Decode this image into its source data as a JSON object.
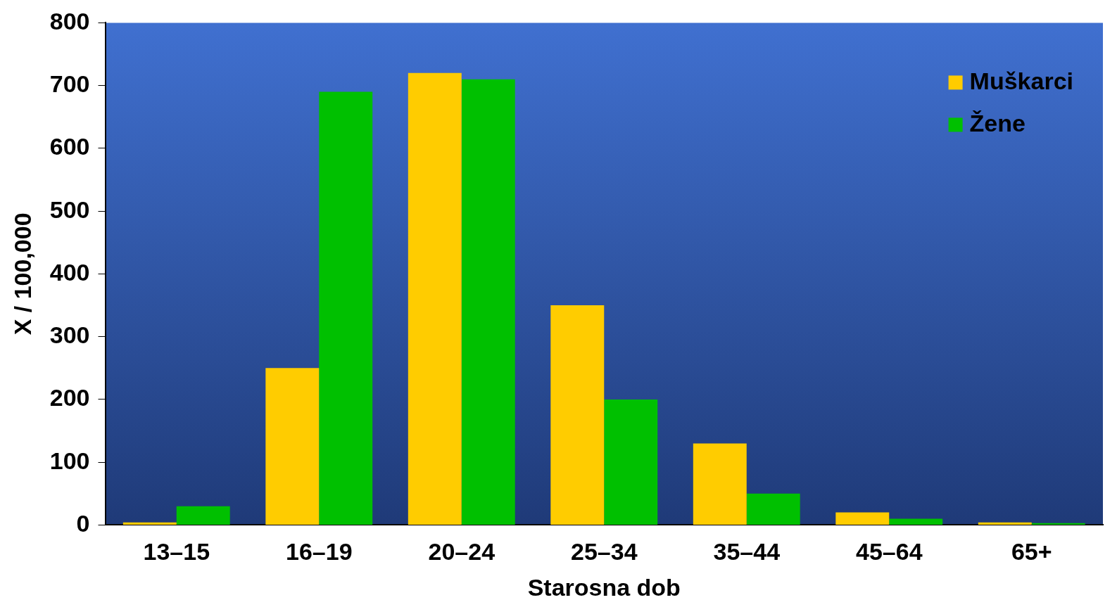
{
  "chart_data": {
    "type": "bar",
    "xlabel": "Starosna dob",
    "ylabel": "X / 100,000",
    "categories": [
      "13–15",
      "16–19",
      "20–24",
      "25–34",
      "35–44",
      "45–64",
      "65+"
    ],
    "series": [
      {
        "name": "Muškarci",
        "color": "#ffcc00",
        "values": [
          4,
          250,
          720,
          350,
          130,
          20,
          4
        ]
      },
      {
        "name": "Žene",
        "color": "#00c000",
        "values": [
          30,
          690,
          710,
          200,
          50,
          10,
          3
        ]
      }
    ],
    "ylim": [
      0,
      800
    ],
    "yticks": [
      0,
      100,
      200,
      300,
      400,
      500,
      600,
      700,
      800
    ],
    "grid": false,
    "legend": "top right"
  }
}
